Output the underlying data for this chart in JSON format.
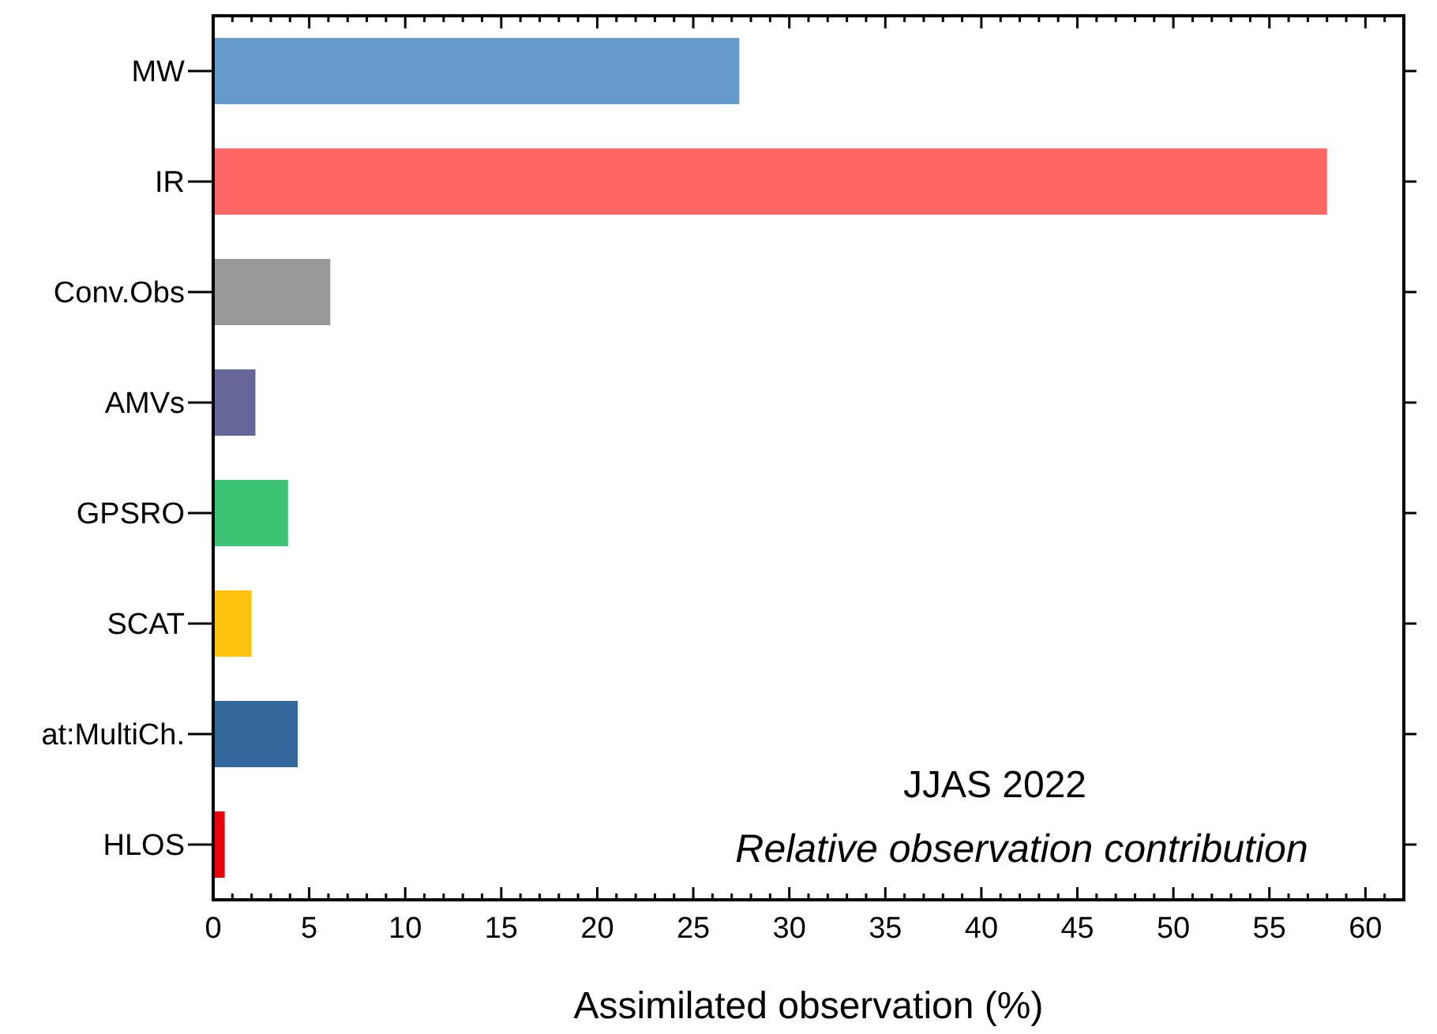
{
  "chart_data": {
    "type": "bar",
    "orientation": "horizontal",
    "categories": [
      "MW",
      "IR",
      "Conv.Obs",
      "AMVs",
      "GPSRO",
      "SCAT",
      "at:MultiCh.",
      "HLOS"
    ],
    "values": [
      27.4,
      58.0,
      6.1,
      2.2,
      3.9,
      2.0,
      4.4,
      0.6
    ],
    "colors": [
      "#6699cc",
      "#ff6666",
      "#999999",
      "#666699",
      "#3cc474",
      "#ffc20e",
      "#336699",
      "#e8000b"
    ],
    "xlabel": "Assimilated observation (%)",
    "xlim": [
      0,
      62
    ],
    "xticks": [
      0,
      {
        "value": 1,
        "label": null
      },
      {
        "value": 2,
        "label": null
      },
      {
        "value": 3,
        "label": null
      },
      {
        "value": 4,
        "label": null
      },
      5,
      {
        "value": 6,
        "label": null
      },
      {
        "value": 7,
        "label": null
      },
      {
        "value": 8,
        "label": null
      },
      {
        "value": 9,
        "label": null
      },
      10,
      {
        "value": 11,
        "label": null
      },
      {
        "value": 12,
        "label": null
      },
      {
        "value": 13,
        "label": null
      },
      {
        "value": 14,
        "label": null
      },
      15,
      {
        "value": 16,
        "label": null
      },
      {
        "value": 17,
        "label": null
      },
      {
        "value": 18,
        "label": null
      },
      {
        "value": 19,
        "label": null
      },
      20,
      {
        "value": 21,
        "label": null
      },
      {
        "value": 22,
        "label": null
      },
      {
        "value": 23,
        "label": null
      },
      {
        "value": 24,
        "label": null
      },
      25,
      {
        "value": 26,
        "label": null
      },
      {
        "value": 27,
        "label": null
      },
      {
        "value": 28,
        "label": null
      },
      {
        "value": 29,
        "label": null
      },
      30,
      {
        "value": 31,
        "label": null
      },
      {
        "value": 32,
        "label": null
      },
      {
        "value": 33,
        "label": null
      },
      {
        "value": 34,
        "label": null
      },
      35,
      {
        "value": 36,
        "label": null
      },
      {
        "value": 37,
        "label": null
      },
      {
        "value": 38,
        "label": null
      },
      {
        "value": 39,
        "label": null
      },
      40,
      {
        "value": 41,
        "label": null
      },
      {
        "value": 42,
        "label": null
      },
      {
        "value": 43,
        "label": null
      },
      {
        "value": 44,
        "label": null
      },
      45,
      {
        "value": 46,
        "label": null
      },
      {
        "value": 47,
        "label": null
      },
      {
        "value": 48,
        "label": null
      },
      {
        "value": 49,
        "label": null
      },
      50,
      {
        "value": 51,
        "label": null
      },
      {
        "value": 52,
        "label": null
      },
      {
        "value": 53,
        "label": null
      },
      {
        "value": 54,
        "label": null
      },
      55,
      {
        "value": 56,
        "label": null
      },
      {
        "value": 57,
        "label": null
      },
      {
        "value": 58,
        "label": null
      },
      {
        "value": 59,
        "label": null
      },
      60,
      {
        "value": 61,
        "label": null
      },
      {
        "value": 62,
        "label": null
      }
    ],
    "annotations": [
      "JJAS 2022",
      "Relative observation contribution"
    ]
  }
}
